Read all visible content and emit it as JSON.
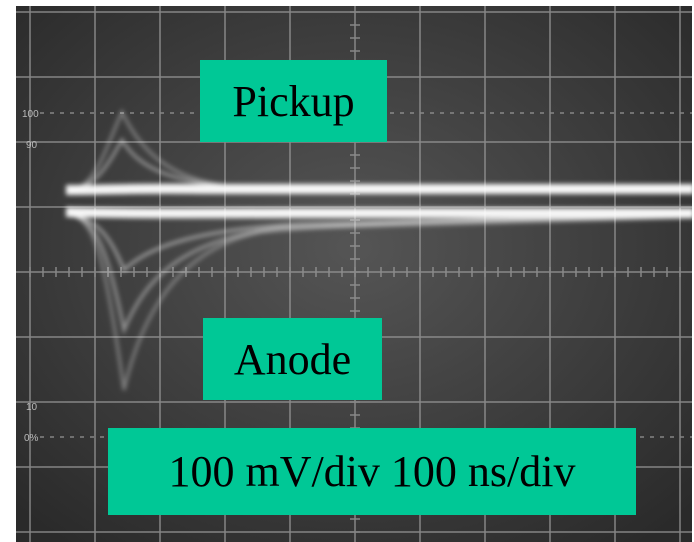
{
  "labels": {
    "pickup": "Pickup",
    "anode": "Anode",
    "scale": "100 mV/div 100 ns/div"
  },
  "graticule": {
    "top_100": "100",
    "top_90": "90",
    "bottom_10": "10",
    "bottom_0": "0%"
  }
}
